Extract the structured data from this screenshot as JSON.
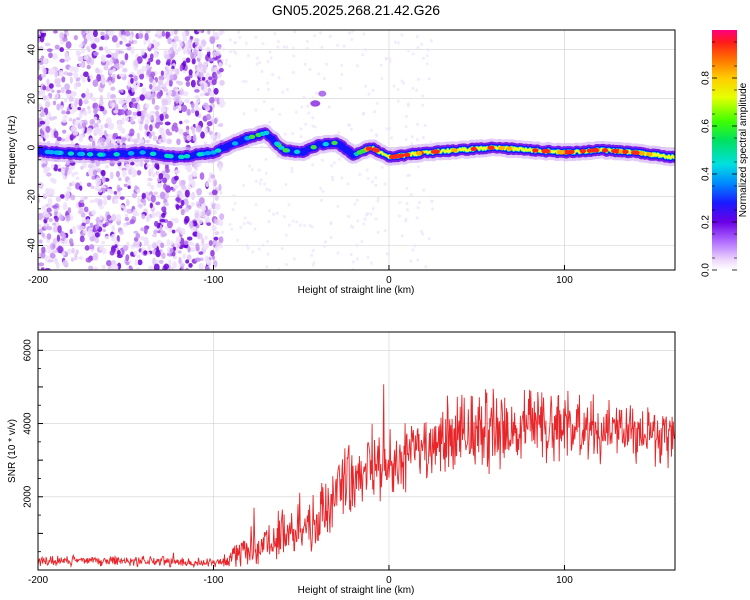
{
  "title": "GN05.2025.268.21.42.G26",
  "chart_data": [
    {
      "type": "heatmap",
      "name": "spectrogram",
      "xlabel": "Height of straight line (km)",
      "ylabel": "Frequency (Hz)",
      "xlim": [
        -200,
        163
      ],
      "ylim": [
        -50,
        48
      ],
      "xticks": [
        -200,
        -100,
        0,
        100
      ],
      "xtick_labels": [
        "-200",
        "-100",
        "0",
        "100"
      ],
      "yticks": [
        -40,
        -20,
        0,
        20,
        40
      ],
      "ytick_labels": [
        "-40",
        "-20",
        "0",
        "20",
        "40"
      ],
      "ridge": {
        "x": [
          -200,
          -180,
          -160,
          -140,
          -120,
          -100,
          -90,
          -80,
          -70,
          -60,
          -50,
          -40,
          -30,
          -20,
          -10,
          0,
          20,
          40,
          60,
          80,
          100,
          120,
          140,
          163
        ],
        "frequency": [
          -1.5,
          -2.5,
          -3,
          -2,
          -4,
          -2,
          1,
          4,
          6,
          -1,
          -2,
          1,
          2,
          -3,
          0,
          -4,
          -2,
          -1,
          0,
          -1,
          -2,
          -1,
          -2,
          -4
        ]
      },
      "noise_region_x": [
        -200,
        -95
      ],
      "colorbar": {
        "label": "Normalized spectral amplitude",
        "range": [
          0,
          1
        ],
        "ticks": [
          0.0,
          0.2,
          0.4,
          0.6,
          0.8
        ],
        "tick_labels": [
          "0.0",
          "0.2",
          "0.4",
          "0.6",
          "0.8"
        ]
      }
    },
    {
      "type": "line",
      "name": "snr",
      "xlabel": "Height of straight line (km)",
      "ylabel": "SNR (10 * v/v)",
      "xlim": [
        -200,
        163
      ],
      "ylim": [
        0,
        6500
      ],
      "xticks": [
        -200,
        -100,
        0,
        100
      ],
      "xtick_labels": [
        "-200",
        "-100",
        "0",
        "100"
      ],
      "yticks": [
        2000,
        4000,
        6000
      ],
      "ytick_labels": [
        "2000",
        "4000",
        "6000"
      ],
      "color": "#e8262a",
      "trend": {
        "x": [
          -200,
          -150,
          -100,
          -90,
          -80,
          -60,
          -40,
          -30,
          -20,
          -10,
          0,
          10,
          20,
          30,
          40,
          60,
          80,
          100,
          120,
          140,
          150,
          160,
          163
        ],
        "snr": [
          250,
          250,
          200,
          350,
          600,
          1000,
          1300,
          2000,
          2500,
          2900,
          2800,
          3000,
          3350,
          3550,
          3800,
          3950,
          4000,
          3900,
          3800,
          3750,
          3650,
          3700,
          3650
        ]
      },
      "noise_amplitude": {
        "x": [
          -200,
          -100,
          -80,
          -60,
          -40,
          -20,
          0,
          20,
          40,
          60,
          80,
          100,
          120,
          140,
          163
        ],
        "amp": [
          150,
          150,
          450,
          700,
          800,
          1000,
          1100,
          900,
          1100,
          1150,
          1050,
          950,
          850,
          800,
          800
        ]
      }
    }
  ]
}
